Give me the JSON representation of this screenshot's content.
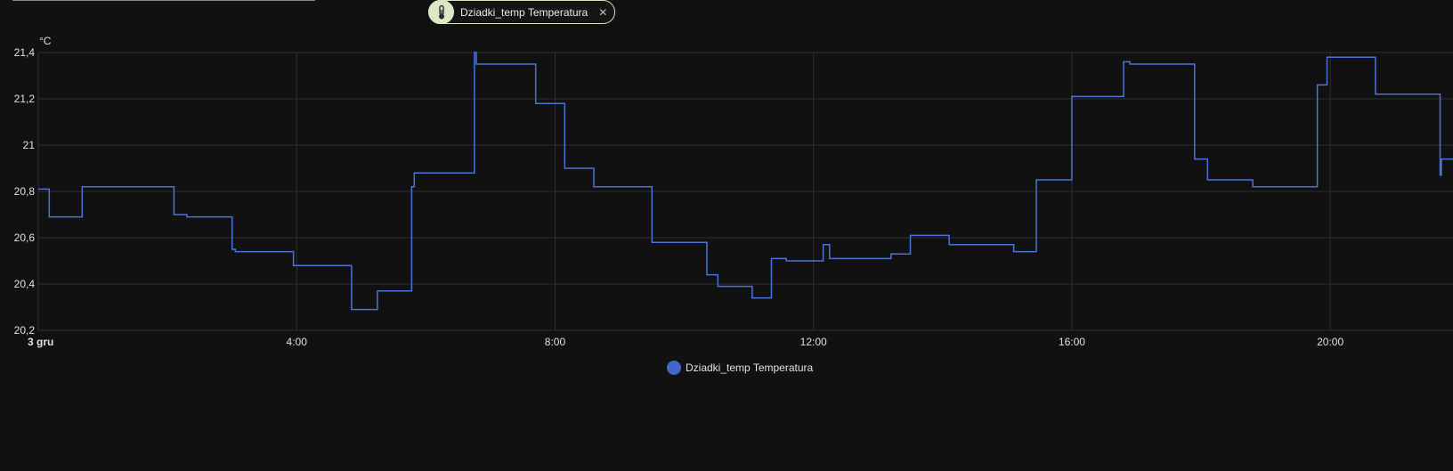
{
  "filter_chip": {
    "label": "Dziadki_temp Temperatura",
    "icon": "thermometer-icon",
    "close_icon": "close-icon"
  },
  "colors": {
    "background": "#111111",
    "grid": "#2f2f2f",
    "series": "#4a72d9",
    "legend_swatch": "#4466cc",
    "chip_avatar": "#dbe8c8"
  },
  "chart_data": {
    "type": "line",
    "step": true,
    "ylabel": "°C",
    "ylim": [
      20.2,
      21.4
    ],
    "y_ticks": [
      {
        "value": 20.2,
        "label": "20,2"
      },
      {
        "value": 20.4,
        "label": "20,4"
      },
      {
        "value": 20.6,
        "label": "20,6"
      },
      {
        "value": 20.8,
        "label": "20,8"
      },
      {
        "value": 21.0,
        "label": "21"
      },
      {
        "value": 21.2,
        "label": "21,2"
      },
      {
        "value": 21.4,
        "label": "21,4"
      }
    ],
    "xlim_hours": [
      0,
      21.9
    ],
    "x_ticks": [
      {
        "hour": 0,
        "label": "3 gru",
        "bold": true
      },
      {
        "hour": 4,
        "label": "4:00"
      },
      {
        "hour": 8,
        "label": "8:00"
      },
      {
        "hour": 12,
        "label": "12:00"
      },
      {
        "hour": 16,
        "label": "16:00"
      },
      {
        "hour": 20,
        "label": "20:00"
      }
    ],
    "grid": true,
    "legend_position": "bottom-center",
    "series": [
      {
        "name": "Dziadki_temp Temperatura",
        "points": [
          [
            0.0,
            20.81
          ],
          [
            0.17,
            20.69
          ],
          [
            0.68,
            20.82
          ],
          [
            2.1,
            20.7
          ],
          [
            2.3,
            20.69
          ],
          [
            3.0,
            20.55
          ],
          [
            3.05,
            20.54
          ],
          [
            3.95,
            20.48
          ],
          [
            4.85,
            20.29
          ],
          [
            5.25,
            20.37
          ],
          [
            5.78,
            20.82
          ],
          [
            5.82,
            20.88
          ],
          [
            6.75,
            21.4
          ],
          [
            6.78,
            21.35
          ],
          [
            7.7,
            21.18
          ],
          [
            8.15,
            20.9
          ],
          [
            8.6,
            20.82
          ],
          [
            9.5,
            20.58
          ],
          [
            10.35,
            20.44
          ],
          [
            10.52,
            20.39
          ],
          [
            11.05,
            20.34
          ],
          [
            11.35,
            20.51
          ],
          [
            11.58,
            20.5
          ],
          [
            12.15,
            20.57
          ],
          [
            12.25,
            20.51
          ],
          [
            13.2,
            20.53
          ],
          [
            13.5,
            20.61
          ],
          [
            14.1,
            20.57
          ],
          [
            15.1,
            20.54
          ],
          [
            15.45,
            20.85
          ],
          [
            16.0,
            21.21
          ],
          [
            16.8,
            21.36
          ],
          [
            16.9,
            21.35
          ],
          [
            17.9,
            20.94
          ],
          [
            18.1,
            20.85
          ],
          [
            18.8,
            20.82
          ],
          [
            19.8,
            21.26
          ],
          [
            19.95,
            21.38
          ],
          [
            20.7,
            21.22
          ],
          [
            21.7,
            20.87
          ],
          [
            21.72,
            20.94
          ],
          [
            21.9,
            20.94
          ]
        ]
      }
    ]
  }
}
